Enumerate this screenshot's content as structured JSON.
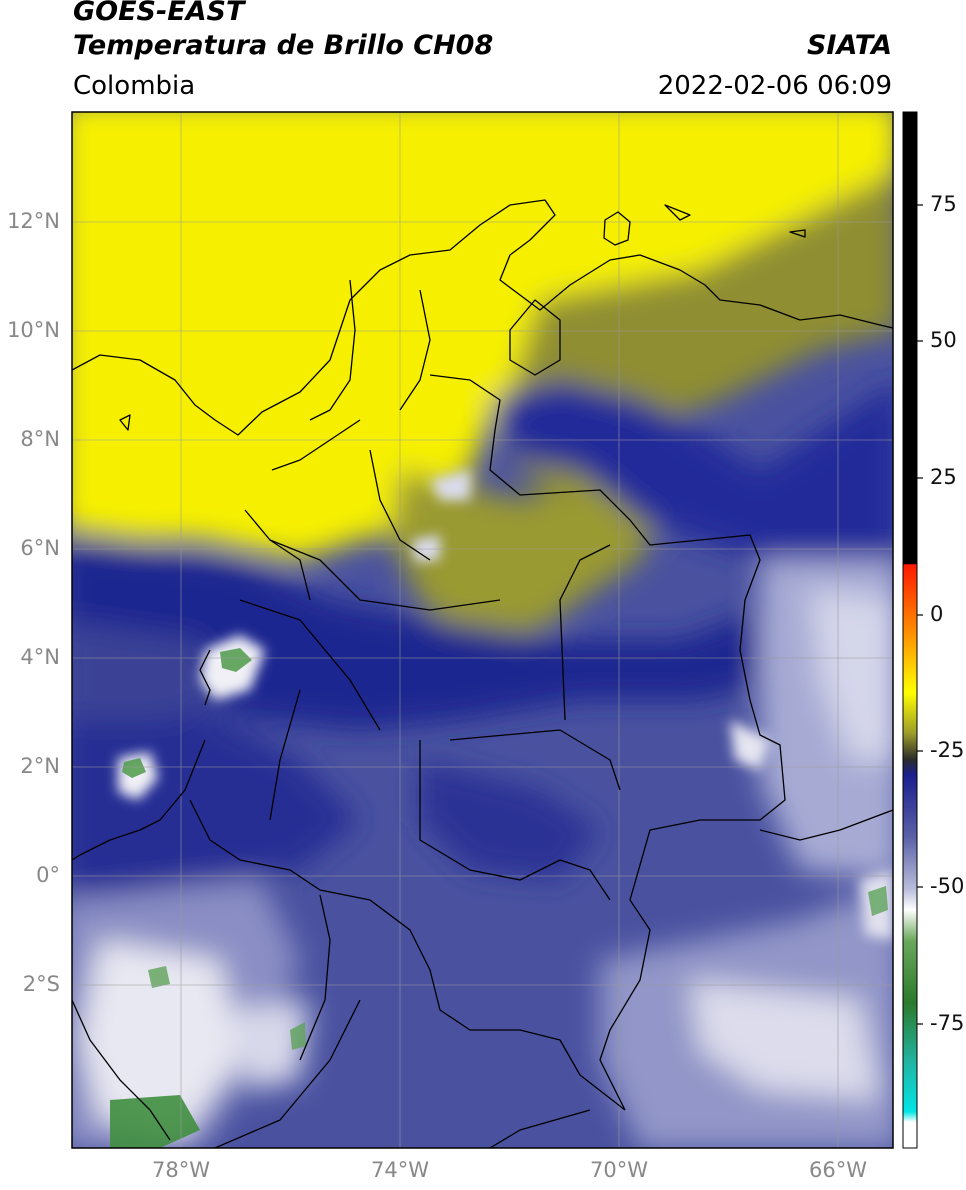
{
  "header": {
    "satellite": "GOES-EAST",
    "product": "Temperatura de Brillo CH08",
    "region": "Colombia",
    "source": "SIATA",
    "datetime": "2022-02-06 06:09"
  },
  "map": {
    "lat_range": [
      -5.0,
      14.0
    ],
    "lon_range": [
      -80.0,
      -65.0
    ],
    "lat_ticks": [
      "12°N",
      "10°N",
      "8°N",
      "6°N",
      "4°N",
      "2°N",
      "0°",
      "2°S"
    ],
    "lon_ticks": [
      "78°W",
      "74°W",
      "70°W",
      "66°W"
    ],
    "gridlines": true,
    "colors": {
      "yellow": "#f6f000",
      "olive": "#9a9a30",
      "navy": "#1c2590",
      "slate": "#4a52a0",
      "lavender": "#8e92c8",
      "white": "#f4f4f8",
      "green": "#4e9a4a"
    }
  },
  "colorbar": {
    "ticks": [
      "75",
      "50",
      "25",
      "0",
      "-25",
      "-50",
      "-75"
    ],
    "tick_values": [
      75,
      50,
      25,
      0,
      -25,
      -50,
      -75
    ],
    "range": [
      -97,
      90
    ]
  }
}
